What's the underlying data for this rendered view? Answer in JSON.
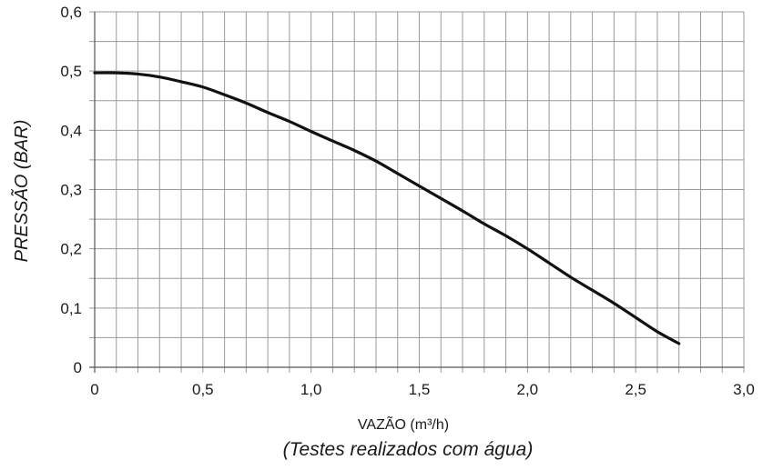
{
  "chart_data": {
    "type": "line",
    "xlabel": "VAZÃO (m³/h)",
    "ylabel": "PRESSÃO  (BAR)",
    "footnote": "(Testes realizados com água)",
    "xlim": [
      0,
      3.0
    ],
    "ylim": [
      0,
      0.6
    ],
    "x_ticks": [
      0,
      0.5,
      1.0,
      1.5,
      2.0,
      2.5,
      3.0
    ],
    "x_tick_labels": [
      "0",
      "0,5",
      "1,0",
      "1,5",
      "2,0",
      "2,5",
      "3,0"
    ],
    "y_ticks": [
      0,
      0.1,
      0.2,
      0.3,
      0.4,
      0.5,
      0.6
    ],
    "y_tick_labels": [
      "0",
      "0,1",
      "0,2",
      "0,3",
      "0,4",
      "0,5",
      "0,6"
    ],
    "x_minor_step": 0.1,
    "y_minor_step": 0.05,
    "grid": true,
    "series": [
      {
        "color": "#111111",
        "x": [
          0,
          0.1,
          0.2,
          0.3,
          0.4,
          0.5,
          0.6,
          0.7,
          0.8,
          0.9,
          1.0,
          1.1,
          1.2,
          1.3,
          1.4,
          1.5,
          1.6,
          1.7,
          1.8,
          1.9,
          2.0,
          2.1,
          2.2,
          2.3,
          2.4,
          2.5,
          2.6,
          2.7
        ],
        "y": [
          0.497,
          0.497,
          0.495,
          0.49,
          0.482,
          0.473,
          0.46,
          0.446,
          0.43,
          0.415,
          0.398,
          0.382,
          0.366,
          0.348,
          0.327,
          0.306,
          0.285,
          0.264,
          0.242,
          0.222,
          0.2,
          0.176,
          0.152,
          0.13,
          0.108,
          0.084,
          0.06,
          0.04
        ]
      }
    ]
  }
}
